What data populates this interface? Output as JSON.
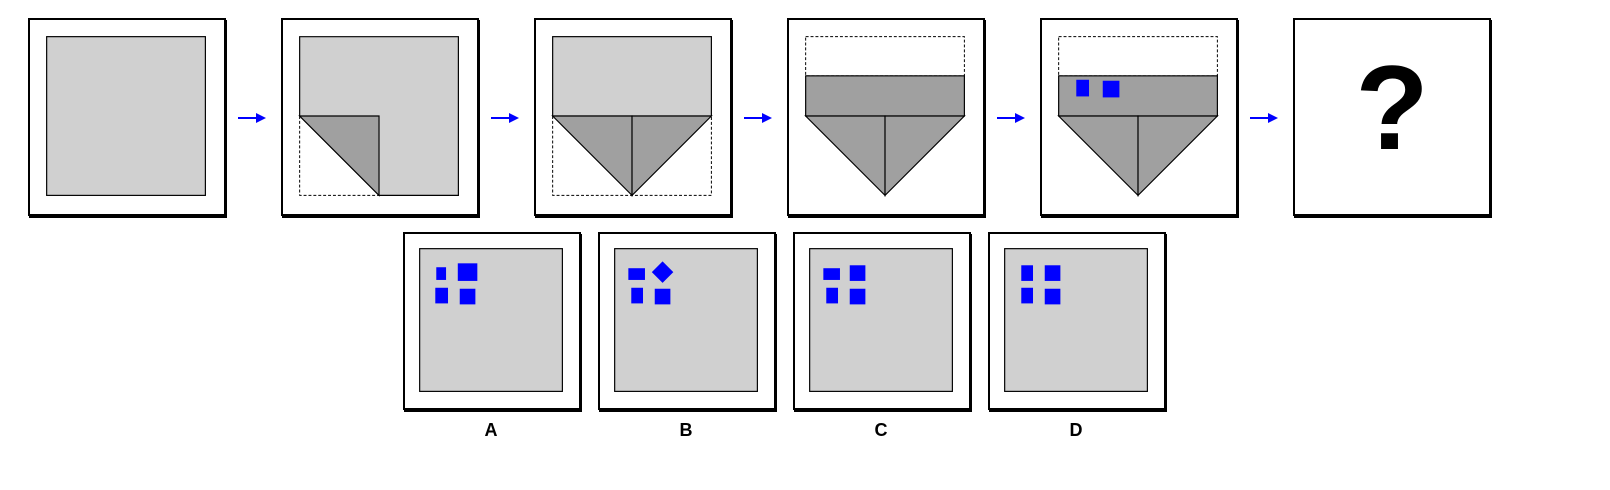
{
  "colors": {
    "paper": "#d0d0d0",
    "folded": "#a0a0a0",
    "hole": "#0000ff",
    "arrow": "#0000ff",
    "frame": "#000000"
  },
  "steps": [
    {
      "name": "step-1-unfolded-square"
    },
    {
      "name": "step-2-corner-folded"
    },
    {
      "name": "step-3-both-corners-folded"
    },
    {
      "name": "step-4-top-folded-down"
    },
    {
      "name": "step-5-holes-punched"
    },
    {
      "name": "step-6-question",
      "symbol": "?"
    }
  ],
  "options": [
    {
      "label": "A"
    },
    {
      "label": "B"
    },
    {
      "label": "C"
    },
    {
      "label": "D"
    }
  ]
}
